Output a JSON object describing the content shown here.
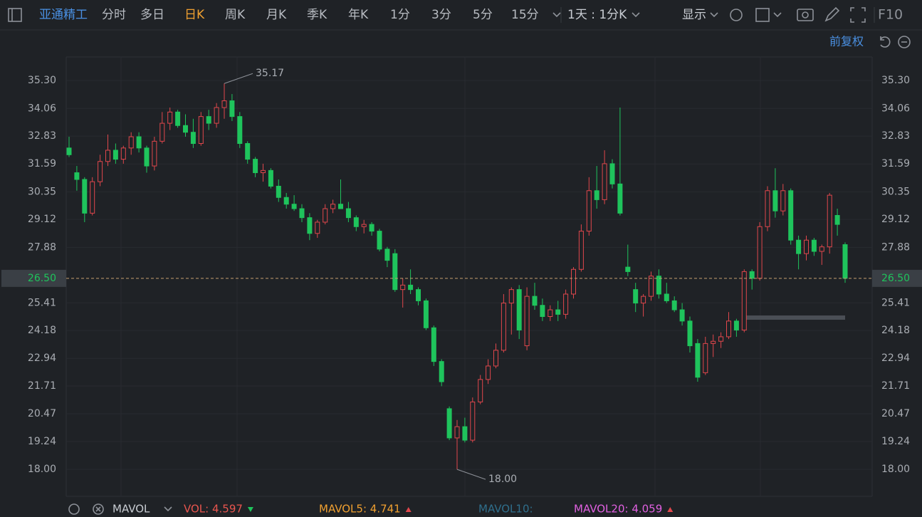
{
  "toolbar": {
    "stock": "亚通精工",
    "tabs": [
      "分时",
      "多日",
      "日K",
      "周K",
      "月K",
      "季K",
      "年K",
      "1分",
      "3分",
      "5分",
      "15分"
    ],
    "active_tab": 2,
    "period": "1天 : 1分K",
    "display": "显示",
    "f10": "F10"
  },
  "adjust": "前复权",
  "chart_data": {
    "type": "candlestick",
    "up_color": "#e0474c",
    "down_color": "#1fc45c",
    "grid": true,
    "ylim": [
      16.8,
      36.35
    ],
    "yticks": [
      {
        "value": 35.3,
        "label": "35.30"
      },
      {
        "value": 34.06,
        "label": "34.06"
      },
      {
        "value": 32.83,
        "label": "32.83"
      },
      {
        "value": 31.59,
        "label": "31.59"
      },
      {
        "value": 30.35,
        "label": "30.35"
      },
      {
        "value": 29.12,
        "label": "29.12"
      },
      {
        "value": 27.88,
        "label": "27.88"
      },
      {
        "value": 25.41,
        "label": "25.41"
      },
      {
        "value": 24.18,
        "label": "24.18"
      },
      {
        "value": 22.94,
        "label": "22.94"
      },
      {
        "value": 21.71,
        "label": "21.71"
      },
      {
        "value": 20.47,
        "label": "20.47"
      },
      {
        "value": 19.24,
        "label": "19.24"
      },
      {
        "value": 18,
        "label": "18.00"
      }
    ],
    "last_price": {
      "value": 26.5,
      "label": "26.50"
    },
    "high_label": 35.17,
    "low_label": {
      "value": 18,
      "label": "18.00"
    },
    "candles": [
      [
        32.3,
        32.8,
        31.9,
        32.0
      ],
      [
        31.2,
        31.5,
        30.4,
        30.9
      ],
      [
        30.9,
        31.0,
        29.0,
        29.4
      ],
      [
        29.4,
        31.0,
        29.3,
        30.8
      ],
      [
        30.8,
        32.0,
        30.6,
        31.7
      ],
      [
        31.7,
        32.9,
        31.5,
        32.2
      ],
      [
        32.2,
        32.5,
        31.6,
        31.8
      ],
      [
        31.8,
        32.4,
        31.6,
        32.3
      ],
      [
        32.3,
        33.0,
        32.0,
        32.8
      ],
      [
        32.8,
        33.0,
        32.1,
        32.3
      ],
      [
        32.3,
        32.4,
        31.2,
        31.5
      ],
      [
        31.5,
        32.8,
        31.3,
        32.6
      ],
      [
        32.6,
        33.9,
        32.5,
        33.4
      ],
      [
        33.4,
        34.1,
        33.1,
        33.9
      ],
      [
        33.9,
        34.0,
        33.2,
        33.3
      ],
      [
        33.3,
        33.8,
        32.8,
        33.0
      ],
      [
        33.0,
        33.6,
        32.3,
        32.5
      ],
      [
        32.5,
        33.9,
        32.4,
        33.7
      ],
      [
        33.7,
        34.0,
        33.1,
        33.4
      ],
      [
        33.4,
        34.3,
        33.2,
        34.1
      ],
      [
        34.1,
        35.17,
        33.6,
        34.4
      ],
      [
        34.4,
        34.7,
        33.5,
        33.7
      ],
      [
        33.7,
        33.9,
        32.3,
        32.5
      ],
      [
        32.5,
        32.6,
        31.6,
        31.8
      ],
      [
        31.8,
        31.9,
        31.0,
        31.2
      ],
      [
        31.2,
        31.6,
        30.8,
        31.3
      ],
      [
        31.3,
        31.4,
        30.5,
        30.6
      ],
      [
        30.6,
        30.9,
        29.9,
        30.1
      ],
      [
        30.1,
        30.3,
        29.6,
        29.8
      ],
      [
        29.8,
        30.2,
        29.5,
        29.6
      ],
      [
        29.6,
        29.8,
        29.0,
        29.2
      ],
      [
        29.2,
        29.4,
        28.2,
        28.5
      ],
      [
        28.5,
        29.1,
        28.3,
        29.0
      ],
      [
        29.0,
        29.8,
        28.9,
        29.6
      ],
      [
        29.6,
        30.0,
        29.4,
        29.8
      ],
      [
        29.8,
        30.9,
        29.6,
        29.6
      ],
      [
        29.6,
        29.9,
        29.0,
        29.2
      ],
      [
        29.2,
        29.3,
        28.6,
        28.8
      ],
      [
        28.8,
        29.1,
        28.5,
        28.9
      ],
      [
        28.9,
        29.0,
        28.4,
        28.6
      ],
      [
        28.6,
        28.7,
        27.7,
        27.8
      ],
      [
        27.8,
        27.9,
        27.0,
        27.3
      ],
      [
        27.6,
        27.8,
        25.9,
        26.0
      ],
      [
        26.0,
        26.5,
        25.2,
        26.2
      ],
      [
        26.2,
        26.9,
        25.8,
        26.0
      ],
      [
        26.0,
        26.1,
        25.3,
        25.5
      ],
      [
        25.5,
        25.6,
        24.2,
        24.3
      ],
      [
        24.3,
        24.4,
        22.6,
        22.8
      ],
      [
        22.8,
        22.9,
        21.7,
        21.9
      ],
      [
        20.7,
        20.8,
        19.3,
        19.4
      ],
      [
        19.4,
        20.2,
        18.0,
        19.9
      ],
      [
        19.9,
        20.3,
        19.2,
        19.3
      ],
      [
        19.3,
        21.2,
        19.2,
        21.0
      ],
      [
        21.0,
        22.2,
        20.9,
        22.0
      ],
      [
        22.0,
        22.9,
        21.8,
        22.6
      ],
      [
        22.6,
        23.6,
        22.5,
        23.3
      ],
      [
        23.3,
        25.8,
        23.2,
        25.4
      ],
      [
        25.4,
        26.1,
        24.0,
        26.0
      ],
      [
        26.0,
        26.2,
        23.8,
        24.2
      ],
      [
        23.5,
        26.1,
        23.3,
        25.7
      ],
      [
        25.7,
        26.3,
        25.1,
        25.3
      ],
      [
        25.3,
        25.6,
        24.6,
        24.8
      ],
      [
        24.8,
        25.3,
        24.6,
        25.1
      ],
      [
        25.1,
        25.5,
        24.6,
        24.9
      ],
      [
        24.9,
        26.0,
        24.7,
        25.8
      ],
      [
        25.8,
        27.0,
        25.6,
        26.9
      ],
      [
        26.9,
        28.9,
        26.8,
        28.6
      ],
      [
        28.6,
        31.0,
        28.4,
        30.4
      ],
      [
        30.4,
        31.5,
        29.6,
        30.0
      ],
      [
        30.0,
        32.2,
        29.8,
        31.6
      ],
      [
        31.6,
        31.8,
        30.5,
        30.7
      ],
      [
        30.7,
        34.1,
        29.3,
        29.4
      ],
      [
        27.0,
        28.0,
        26.6,
        26.8
      ],
      [
        26.0,
        26.3,
        25.0,
        25.4
      ],
      [
        25.4,
        25.8,
        24.8,
        25.7
      ],
      [
        25.7,
        26.8,
        25.5,
        26.6
      ],
      [
        26.6,
        26.9,
        25.6,
        25.8
      ],
      [
        25.8,
        26.3,
        25.4,
        25.5
      ],
      [
        25.5,
        25.7,
        25.0,
        25.1
      ],
      [
        25.1,
        25.4,
        24.4,
        24.6
      ],
      [
        24.6,
        24.8,
        23.2,
        23.5
      ],
      [
        23.6,
        23.8,
        21.9,
        22.1
      ],
      [
        22.3,
        23.9,
        22.2,
        23.6
      ],
      [
        23.6,
        24.0,
        23.0,
        23.7
      ],
      [
        23.7,
        24.1,
        23.4,
        23.9
      ],
      [
        23.9,
        25.0,
        23.8,
        24.6
      ],
      [
        24.6,
        24.7,
        23.9,
        24.2
      ],
      [
        24.2,
        26.9,
        24.1,
        26.8
      ],
      [
        26.8,
        26.9,
        26.0,
        26.5
      ],
      [
        26.5,
        29.0,
        26.4,
        28.8
      ],
      [
        28.8,
        30.6,
        28.6,
        30.4
      ],
      [
        30.4,
        31.4,
        29.2,
        29.5
      ],
      [
        29.5,
        30.7,
        29.3,
        30.4
      ],
      [
        30.4,
        30.5,
        28.0,
        28.2
      ],
      [
        28.2,
        28.4,
        26.9,
        27.6
      ],
      [
        27.6,
        28.4,
        27.3,
        28.2
      ],
      [
        28.2,
        28.3,
        27.5,
        27.7
      ],
      [
        27.7,
        28.0,
        27.1,
        27.9
      ],
      [
        27.9,
        30.3,
        27.6,
        30.2
      ],
      [
        29.3,
        29.6,
        28.4,
        28.9
      ],
      [
        28.0,
        28.1,
        26.3,
        26.5
      ]
    ]
  },
  "indicator": {
    "name": "MAVOL",
    "items": [
      {
        "label": "VOL: 4.597",
        "color": "#e8554e",
        "trend": "down"
      },
      {
        "label": "MAVOL5: 4.741",
        "color": "#f0a030",
        "trend": "up"
      },
      {
        "label": "MAVOL10:",
        "color": "#2f6f8c"
      },
      {
        "label": "MAVOL20: 4.059",
        "color": "#e060e0",
        "trend": "up"
      }
    ]
  }
}
